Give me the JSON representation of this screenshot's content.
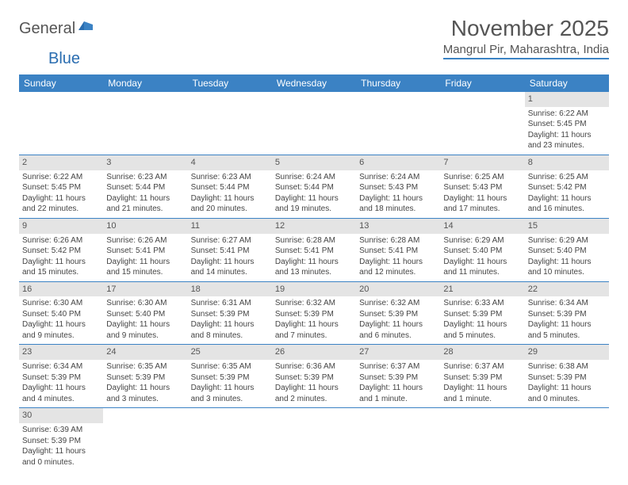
{
  "logo": {
    "general": "General",
    "blue": "Blue"
  },
  "title": "November 2025",
  "location": "Mangrul Pir, Maharashtra, India",
  "weekdays": [
    "Sunday",
    "Monday",
    "Tuesday",
    "Wednesday",
    "Thursday",
    "Friday",
    "Saturday"
  ],
  "colors": {
    "header_bg": "#3b82c4",
    "daynum_bg": "#e4e4e4",
    "text": "#444444",
    "title": "#555555"
  },
  "weeks": [
    [
      null,
      null,
      null,
      null,
      null,
      null,
      {
        "n": "1",
        "sunrise": "Sunrise: 6:22 AM",
        "sunset": "Sunset: 5:45 PM",
        "daylight": "Daylight: 11 hours and 23 minutes."
      }
    ],
    [
      {
        "n": "2",
        "sunrise": "Sunrise: 6:22 AM",
        "sunset": "Sunset: 5:45 PM",
        "daylight": "Daylight: 11 hours and 22 minutes."
      },
      {
        "n": "3",
        "sunrise": "Sunrise: 6:23 AM",
        "sunset": "Sunset: 5:44 PM",
        "daylight": "Daylight: 11 hours and 21 minutes."
      },
      {
        "n": "4",
        "sunrise": "Sunrise: 6:23 AM",
        "sunset": "Sunset: 5:44 PM",
        "daylight": "Daylight: 11 hours and 20 minutes."
      },
      {
        "n": "5",
        "sunrise": "Sunrise: 6:24 AM",
        "sunset": "Sunset: 5:44 PM",
        "daylight": "Daylight: 11 hours and 19 minutes."
      },
      {
        "n": "6",
        "sunrise": "Sunrise: 6:24 AM",
        "sunset": "Sunset: 5:43 PM",
        "daylight": "Daylight: 11 hours and 18 minutes."
      },
      {
        "n": "7",
        "sunrise": "Sunrise: 6:25 AM",
        "sunset": "Sunset: 5:43 PM",
        "daylight": "Daylight: 11 hours and 17 minutes."
      },
      {
        "n": "8",
        "sunrise": "Sunrise: 6:25 AM",
        "sunset": "Sunset: 5:42 PM",
        "daylight": "Daylight: 11 hours and 16 minutes."
      }
    ],
    [
      {
        "n": "9",
        "sunrise": "Sunrise: 6:26 AM",
        "sunset": "Sunset: 5:42 PM",
        "daylight": "Daylight: 11 hours and 15 minutes."
      },
      {
        "n": "10",
        "sunrise": "Sunrise: 6:26 AM",
        "sunset": "Sunset: 5:41 PM",
        "daylight": "Daylight: 11 hours and 15 minutes."
      },
      {
        "n": "11",
        "sunrise": "Sunrise: 6:27 AM",
        "sunset": "Sunset: 5:41 PM",
        "daylight": "Daylight: 11 hours and 14 minutes."
      },
      {
        "n": "12",
        "sunrise": "Sunrise: 6:28 AM",
        "sunset": "Sunset: 5:41 PM",
        "daylight": "Daylight: 11 hours and 13 minutes."
      },
      {
        "n": "13",
        "sunrise": "Sunrise: 6:28 AM",
        "sunset": "Sunset: 5:41 PM",
        "daylight": "Daylight: 11 hours and 12 minutes."
      },
      {
        "n": "14",
        "sunrise": "Sunrise: 6:29 AM",
        "sunset": "Sunset: 5:40 PM",
        "daylight": "Daylight: 11 hours and 11 minutes."
      },
      {
        "n": "15",
        "sunrise": "Sunrise: 6:29 AM",
        "sunset": "Sunset: 5:40 PM",
        "daylight": "Daylight: 11 hours and 10 minutes."
      }
    ],
    [
      {
        "n": "16",
        "sunrise": "Sunrise: 6:30 AM",
        "sunset": "Sunset: 5:40 PM",
        "daylight": "Daylight: 11 hours and 9 minutes."
      },
      {
        "n": "17",
        "sunrise": "Sunrise: 6:30 AM",
        "sunset": "Sunset: 5:40 PM",
        "daylight": "Daylight: 11 hours and 9 minutes."
      },
      {
        "n": "18",
        "sunrise": "Sunrise: 6:31 AM",
        "sunset": "Sunset: 5:39 PM",
        "daylight": "Daylight: 11 hours and 8 minutes."
      },
      {
        "n": "19",
        "sunrise": "Sunrise: 6:32 AM",
        "sunset": "Sunset: 5:39 PM",
        "daylight": "Daylight: 11 hours and 7 minutes."
      },
      {
        "n": "20",
        "sunrise": "Sunrise: 6:32 AM",
        "sunset": "Sunset: 5:39 PM",
        "daylight": "Daylight: 11 hours and 6 minutes."
      },
      {
        "n": "21",
        "sunrise": "Sunrise: 6:33 AM",
        "sunset": "Sunset: 5:39 PM",
        "daylight": "Daylight: 11 hours and 5 minutes."
      },
      {
        "n": "22",
        "sunrise": "Sunrise: 6:34 AM",
        "sunset": "Sunset: 5:39 PM",
        "daylight": "Daylight: 11 hours and 5 minutes."
      }
    ],
    [
      {
        "n": "23",
        "sunrise": "Sunrise: 6:34 AM",
        "sunset": "Sunset: 5:39 PM",
        "daylight": "Daylight: 11 hours and 4 minutes."
      },
      {
        "n": "24",
        "sunrise": "Sunrise: 6:35 AM",
        "sunset": "Sunset: 5:39 PM",
        "daylight": "Daylight: 11 hours and 3 minutes."
      },
      {
        "n": "25",
        "sunrise": "Sunrise: 6:35 AM",
        "sunset": "Sunset: 5:39 PM",
        "daylight": "Daylight: 11 hours and 3 minutes."
      },
      {
        "n": "26",
        "sunrise": "Sunrise: 6:36 AM",
        "sunset": "Sunset: 5:39 PM",
        "daylight": "Daylight: 11 hours and 2 minutes."
      },
      {
        "n": "27",
        "sunrise": "Sunrise: 6:37 AM",
        "sunset": "Sunset: 5:39 PM",
        "daylight": "Daylight: 11 hours and 1 minute."
      },
      {
        "n": "28",
        "sunrise": "Sunrise: 6:37 AM",
        "sunset": "Sunset: 5:39 PM",
        "daylight": "Daylight: 11 hours and 1 minute."
      },
      {
        "n": "29",
        "sunrise": "Sunrise: 6:38 AM",
        "sunset": "Sunset: 5:39 PM",
        "daylight": "Daylight: 11 hours and 0 minutes."
      }
    ],
    [
      {
        "n": "30",
        "sunrise": "Sunrise: 6:39 AM",
        "sunset": "Sunset: 5:39 PM",
        "daylight": "Daylight: 11 hours and 0 minutes."
      },
      null,
      null,
      null,
      null,
      null,
      null
    ]
  ]
}
